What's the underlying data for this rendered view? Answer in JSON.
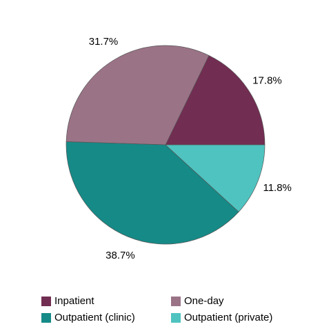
{
  "chart_data": {
    "type": "pie",
    "categories": [
      "Inpatient",
      "One-day",
      "Outpatient (clinic)",
      "Outpatient (private)"
    ],
    "values": [
      17.8,
      31.7,
      38.7,
      11.8
    ],
    "value_labels": [
      "17.8%",
      "31.7%",
      "38.7%",
      "11.8%"
    ],
    "colors": [
      "#722d52",
      "#9b7386",
      "#168a87",
      "#4fc3c0"
    ]
  }
}
